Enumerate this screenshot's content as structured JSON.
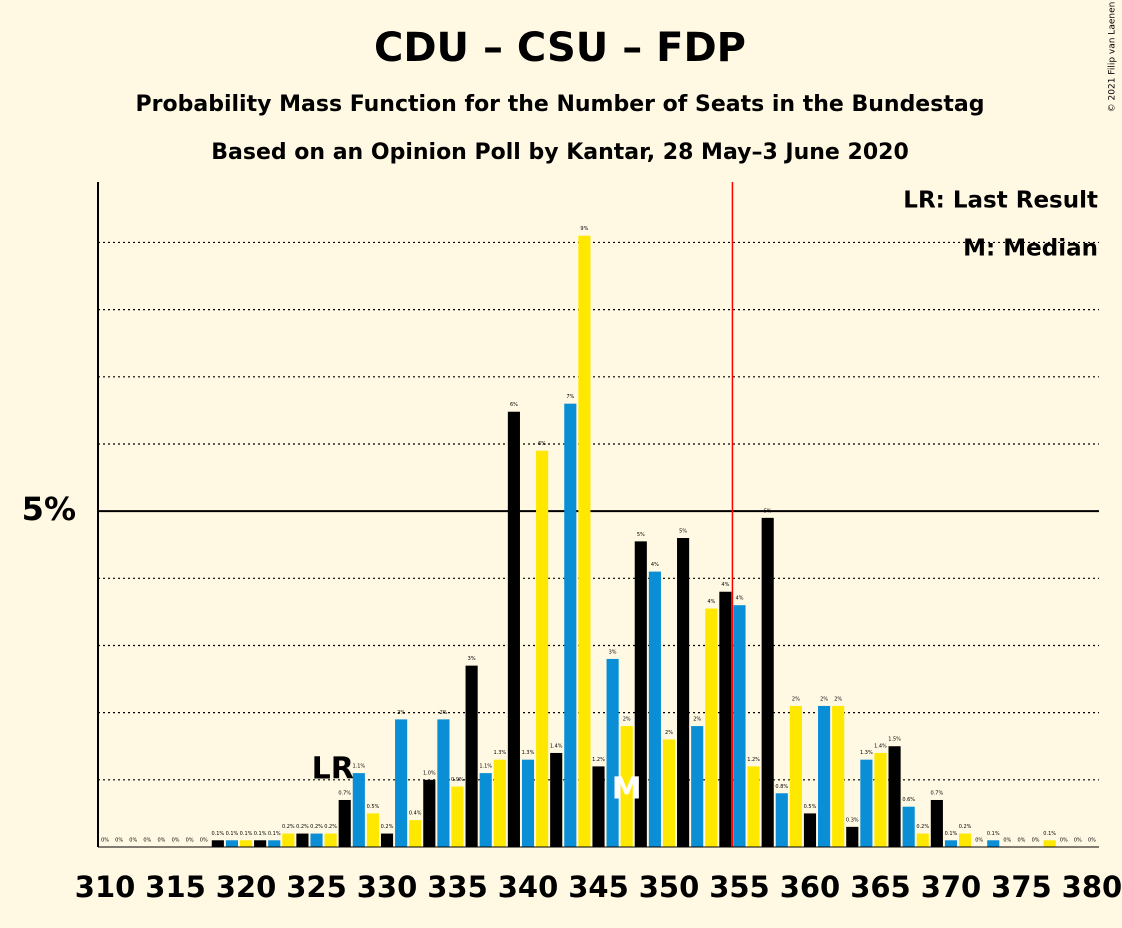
{
  "chart_data": {
    "type": "bar",
    "title": "CDU – CSU – FDP",
    "subtitle": "Probability Mass Function for the Number of Seats in the Bundestag",
    "subtitle2": "Based on an Opinion Poll by Kantar, 28 May–3 June 2020",
    "copyright": "© 2021 Filip van Laenen",
    "legend": [
      "LR: Last Result",
      "M: Median"
    ],
    "x": [
      310,
      311,
      312,
      313,
      314,
      315,
      316,
      317,
      318,
      319,
      320,
      321,
      322,
      323,
      324,
      325,
      326,
      327,
      328,
      329,
      330,
      331,
      332,
      333,
      334,
      335,
      336,
      337,
      338,
      339,
      340,
      341,
      342,
      343,
      344,
      345,
      346,
      347,
      348,
      349,
      350,
      351,
      352,
      353,
      354,
      355,
      356,
      357,
      358,
      359,
      360,
      361,
      362,
      363,
      364,
      365,
      366,
      367,
      368,
      369,
      370,
      371,
      372,
      373,
      374,
      375,
      376,
      377,
      378,
      379,
      380
    ],
    "values": [
      0,
      0,
      0,
      0,
      0,
      0,
      0,
      0,
      0.1,
      0.1,
      0.1,
      0.1,
      0.1,
      0.2,
      0.2,
      0.2,
      0.2,
      0.7,
      1.1,
      0.5,
      0.2,
      1.9,
      0.4,
      1.0,
      1.9,
      0.9,
      2.7,
      1.1,
      1.3,
      6.48,
      1.3,
      5.9,
      1.4,
      6.6,
      9.1,
      1.2,
      2.8,
      1.8,
      4.55,
      4.1,
      1.6,
      4.6,
      1.8,
      3.55,
      3.8,
      3.6,
      1.2,
      4.9,
      0.8,
      2.1,
      0.5,
      2.1,
      2.1,
      0.3,
      1.3,
      1.4,
      1.5,
      0.6,
      0.2,
      0.7,
      0.1,
      0.2,
      0,
      0.1,
      0,
      0,
      0,
      0.1,
      0,
      0,
      0
    ],
    "value_labels": [
      "0%",
      "0%",
      "0%",
      "0%",
      "0%",
      "0%",
      "0%",
      "0%",
      "0.1%",
      "0.1%",
      "0.1%",
      "0.1%",
      "0.1%",
      "0.2%",
      "0.2%",
      "0.2%",
      "0.2%",
      "0.7%",
      "1.1%",
      "0.5%",
      "0.2%",
      "2%",
      "0.4%",
      "1.0%",
      "2%",
      "0.9%",
      "3%",
      "1.1%",
      "1.3%",
      "6%",
      "1.3%",
      "6%",
      "1.4%",
      "7%",
      "9%",
      "1.2%",
      "3%",
      "2%",
      "5%",
      "4%",
      "2%",
      "5%",
      "2%",
      "4%",
      "4%",
      "4%",
      "1.2%",
      "5%",
      "0.8%",
      "2%",
      "0.5%",
      "2%",
      "2%",
      "0.3%",
      "1.3%",
      "1.4%",
      "1.5%",
      "0.6%",
      "0.2%",
      "0.7%",
      "0.1%",
      "0.2%",
      "0%",
      "0.1%",
      "0%",
      "0%",
      "0%",
      "0.1%",
      "0%",
      "0%",
      "0%"
    ],
    "color_cycle": [
      "#0a8fd6",
      "#ffe800",
      "#000000"
    ],
    "xlim": [
      309.5,
      380.5
    ],
    "xticks": [
      310,
      315,
      320,
      325,
      330,
      335,
      340,
      345,
      350,
      355,
      360,
      365,
      370,
      375,
      380
    ],
    "ylim": [
      0,
      9.9
    ],
    "yticks": [
      {
        "value": 5,
        "label": "5%"
      }
    ],
    "minor_grid_step": 1,
    "annotations": [
      {
        "text": "LR",
        "x": 327
      },
      {
        "text": "M",
        "x": 347
      }
    ],
    "majority_line": 354.5,
    "majority_color": "#ff0000"
  }
}
